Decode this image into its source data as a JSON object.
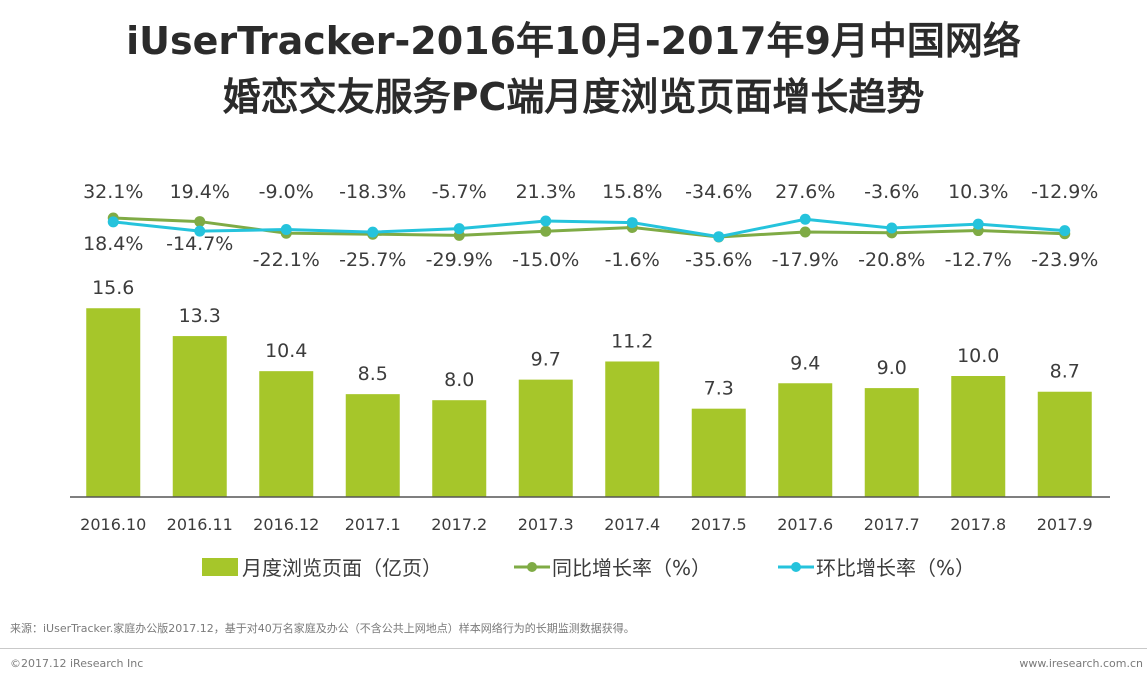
{
  "title_line1": "iUserTracker-2016年10月-2017年9月中国网络",
  "title_line2": "婚恋交友服务PC端月度浏览页面增长趋势",
  "colors": {
    "bar": "#a6c62a",
    "yoy": "#7fab45",
    "mom": "#25c3dc",
    "axis": "#555555"
  },
  "legend": {
    "bar": "月度浏览页面（亿页）",
    "yoy": "同比增长率（%）",
    "mom": "环比增长率（%）"
  },
  "chart_data": {
    "type": "bar",
    "title": "iUserTracker-2016年10月-2017年9月中国网络婚恋交友服务PC端月度浏览页面增长趋势",
    "categories": [
      "2016.10",
      "2016.11",
      "2016.12",
      "2017.1",
      "2017.2",
      "2017.3",
      "2017.4",
      "2017.5",
      "2017.6",
      "2017.7",
      "2017.8",
      "2017.9"
    ],
    "series": [
      {
        "name": "月度浏览页面（亿页）",
        "type": "bar",
        "values": [
          15.6,
          13.3,
          10.4,
          8.5,
          8.0,
          9.7,
          11.2,
          7.3,
          9.4,
          9.0,
          10.0,
          8.7
        ],
        "labels": [
          "15.6",
          "13.3",
          "10.4",
          "8.5",
          "8.0",
          "9.7",
          "11.2",
          "7.3",
          "9.4",
          "9.0",
          "10.0",
          "8.7"
        ]
      },
      {
        "name": "同比增长率（%）",
        "type": "line",
        "values": [
          32.1,
          19.4,
          -22.1,
          -25.7,
          -29.9,
          -15.0,
          -1.6,
          -35.6,
          -17.9,
          -20.8,
          -12.7,
          -23.9
        ],
        "labels": [
          "32.1%",
          "19.4%",
          "-22.1%",
          "-25.7%",
          "-29.9%",
          "-15.0%",
          "-1.6%",
          "-35.6%",
          "-17.9%",
          "-20.8%",
          "-12.7%",
          "-23.9%"
        ]
      },
      {
        "name": "环比增长率（%）",
        "type": "line",
        "values": [
          18.4,
          -14.7,
          -9.0,
          -18.3,
          -5.7,
          21.3,
          15.8,
          -34.6,
          27.6,
          -3.6,
          10.3,
          -12.9
        ],
        "labels": [
          "18.4%",
          "-14.7%",
          "-9.0%",
          "-18.3%",
          "-5.7%",
          "21.3%",
          "15.8%",
          "-34.6%",
          "27.6%",
          "-3.6%",
          "10.3%",
          "-12.9%"
        ]
      }
    ],
    "xlabel": "",
    "ylabel": ""
  },
  "source": "来源：iUserTracker.家庭办公版2017.12，基于对40万名家庭及办公（不含公共上网地点）样本网络行为的长期监测数据获得。",
  "copyright": "©2017.12 iResearch Inc",
  "website": "www.iresearch.com.cn"
}
